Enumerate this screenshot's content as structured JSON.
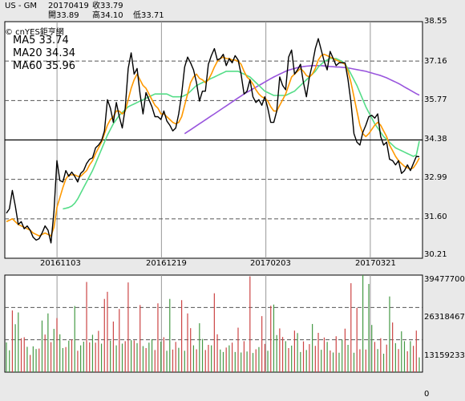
{
  "header": {
    "symbol": "US - GM",
    "date": "20170419",
    "close": "收33.79",
    "open": "開33.89",
    "high": "高34.10",
    "low": "低33.71",
    "credit": "© cnYES鉅亨網"
  },
  "legend": {
    "ma5": "MA5 33.74",
    "ma20": "MA20 34.34",
    "ma60": "MA60 35.96"
  },
  "colors": {
    "price": "#000000",
    "ma5": "#ff9900",
    "ma20": "#55dd88",
    "ma60": "#9955dd",
    "vol_up": "#cc4444",
    "vol_down": "#449944",
    "background": "#e9e9e9",
    "panel": "#ffffff"
  },
  "chart_data": [
    {
      "type": "line",
      "title": "US - GM",
      "y_tick_labels": [
        "38.55",
        "37.16",
        "35.77",
        "34.38",
        "32.99",
        "31.60",
        "30.21"
      ],
      "ylim": [
        30.21,
        38.55
      ],
      "x_tick_labels": [
        "20161103",
        "20161219",
        "20170203",
        "20170321"
      ],
      "grid": true,
      "reference_level": 34.38,
      "x_count": 140,
      "series": [
        {
          "name": "收",
          "values": [
            31.8,
            31.95,
            32.6,
            32.05,
            31.4,
            31.5,
            31.25,
            31.35,
            31.2,
            30.95,
            30.85,
            30.9,
            31.1,
            31.35,
            31.2,
            30.75,
            31.85,
            33.65,
            32.95,
            32.9,
            33.3,
            33.1,
            33.25,
            33.1,
            32.9,
            33.2,
            33.3,
            33.55,
            33.7,
            33.75,
            34.1,
            34.2,
            34.35,
            34.7,
            35.8,
            35.5,
            35.0,
            35.7,
            35.2,
            34.8,
            35.5,
            36.9,
            37.45,
            36.7,
            36.9,
            36.0,
            35.3,
            36.05,
            35.8,
            35.55,
            35.2,
            35.2,
            35.1,
            35.4,
            35.05,
            34.9,
            34.7,
            34.8,
            35.3,
            36.0,
            36.95,
            37.3,
            37.1,
            36.85,
            36.4,
            35.75,
            36.1,
            36.1,
            37.05,
            37.35,
            37.6,
            37.2,
            37.25,
            37.4,
            37.0,
            37.25,
            37.1,
            37.35,
            37.2,
            36.7,
            36.0,
            36.1,
            36.5,
            35.9,
            35.7,
            35.8,
            35.6,
            35.9,
            35.5,
            35.0,
            35.0,
            35.4,
            36.6,
            36.3,
            36.15,
            37.3,
            37.55,
            36.7,
            36.85,
            37.05,
            36.4,
            35.9,
            36.6,
            37.05,
            37.6,
            37.95,
            37.55,
            37.15,
            36.85,
            37.5,
            37.25,
            37.0,
            37.1,
            37.1,
            37.1,
            36.5,
            35.7,
            34.6,
            34.3,
            34.2,
            34.65,
            34.9,
            35.2,
            35.25,
            35.15,
            35.3,
            34.5,
            34.2,
            34.3,
            33.7,
            33.65,
            33.5,
            33.65,
            33.2,
            33.3,
            33.5,
            33.3,
            33.55,
            33.8,
            33.79
          ]
        },
        {
          "name": "MA5",
          "values": [
            31.5,
            31.55,
            31.6,
            31.5,
            31.4,
            31.35,
            31.3,
            31.25,
            31.2,
            31.1,
            31.05,
            31.0,
            31.05,
            31.1,
            31.05,
            31.0,
            31.3,
            32.0,
            32.35,
            32.7,
            33.0,
            33.15,
            33.15,
            33.15,
            33.1,
            33.1,
            33.2,
            33.3,
            33.5,
            33.65,
            33.9,
            34.1,
            34.3,
            34.6,
            34.9,
            35.1,
            35.2,
            35.4,
            35.4,
            35.3,
            35.4,
            35.8,
            36.2,
            36.5,
            36.7,
            36.5,
            36.3,
            36.2,
            36.0,
            35.8,
            35.6,
            35.5,
            35.3,
            35.3,
            35.2,
            35.1,
            35.0,
            34.95,
            35.0,
            35.2,
            35.6,
            36.0,
            36.4,
            36.6,
            36.7,
            36.55,
            36.5,
            36.4,
            36.5,
            36.7,
            36.95,
            37.15,
            37.25,
            37.3,
            37.25,
            37.25,
            37.2,
            37.2,
            37.15,
            37.05,
            36.8,
            36.6,
            36.5,
            36.35,
            36.15,
            36.0,
            35.9,
            35.85,
            35.75,
            35.55,
            35.4,
            35.4,
            35.6,
            35.8,
            36.0,
            36.3,
            36.6,
            36.7,
            36.8,
            36.9,
            36.8,
            36.65,
            36.6,
            36.7,
            36.9,
            37.2,
            37.35,
            37.4,
            37.35,
            37.3,
            37.25,
            37.2,
            37.15,
            37.1,
            37.05,
            36.8,
            36.4,
            35.9,
            35.4,
            34.9,
            34.6,
            34.5,
            34.6,
            34.75,
            34.9,
            35.0,
            34.9,
            34.7,
            34.5,
            34.2,
            34.0,
            33.8,
            33.65,
            33.55,
            33.45,
            33.4,
            33.35,
            33.4,
            33.55,
            33.74
          ]
        },
        {
          "name": "MA20",
          "values": [
            null,
            null,
            null,
            null,
            null,
            null,
            null,
            null,
            null,
            null,
            null,
            null,
            null,
            null,
            null,
            null,
            null,
            null,
            null,
            31.95,
            31.97,
            32.0,
            32.05,
            32.15,
            32.3,
            32.5,
            32.7,
            32.9,
            33.1,
            33.3,
            33.55,
            33.8,
            34.05,
            34.3,
            34.55,
            34.75,
            34.95,
            35.1,
            35.25,
            35.35,
            35.45,
            35.55,
            35.6,
            35.65,
            35.7,
            35.75,
            35.8,
            35.85,
            35.9,
            35.95,
            36.0,
            36.0,
            36.0,
            36.0,
            36.0,
            35.95,
            35.9,
            35.9,
            35.9,
            35.9,
            35.95,
            36.0,
            36.1,
            36.2,
            36.3,
            36.35,
            36.4,
            36.45,
            36.5,
            36.55,
            36.6,
            36.65,
            36.7,
            36.75,
            36.8,
            36.8,
            36.8,
            36.8,
            36.8,
            36.75,
            36.7,
            36.65,
            36.6,
            36.5,
            36.4,
            36.3,
            36.2,
            36.1,
            36.05,
            36.0,
            35.95,
            35.95,
            35.95,
            35.95,
            35.95,
            36.0,
            36.05,
            36.1,
            36.2,
            36.3,
            36.4,
            36.5,
            36.6,
            36.7,
            36.8,
            36.95,
            37.05,
            37.15,
            37.2,
            37.25,
            37.25,
            37.25,
            37.2,
            37.15,
            37.05,
            36.9,
            36.7,
            36.5,
            36.3,
            36.05,
            35.8,
            35.55,
            35.35,
            35.15,
            34.95,
            34.8,
            34.65,
            34.5,
            34.4,
            34.3,
            34.2,
            34.1,
            34.05,
            34.0,
            33.95,
            33.9,
            33.85,
            33.8,
            33.85,
            34.34
          ]
        },
        {
          "name": "MA60",
          "values": [
            null,
            null,
            null,
            null,
            null,
            null,
            null,
            null,
            null,
            null,
            null,
            null,
            null,
            null,
            null,
            null,
            null,
            null,
            null,
            null,
            null,
            null,
            null,
            null,
            null,
            null,
            null,
            null,
            null,
            null,
            null,
            null,
            null,
            null,
            null,
            null,
            null,
            null,
            null,
            null,
            null,
            null,
            null,
            null,
            null,
            null,
            null,
            null,
            null,
            null,
            null,
            null,
            null,
            null,
            null,
            null,
            null,
            null,
            null,
            null,
            34.6,
            34.67,
            34.74,
            34.81,
            34.88,
            34.95,
            35.02,
            35.09,
            35.16,
            35.23,
            35.3,
            35.37,
            35.44,
            35.51,
            35.58,
            35.65,
            35.72,
            35.79,
            35.86,
            35.93,
            36.0,
            36.06,
            36.12,
            36.18,
            36.24,
            36.3,
            36.36,
            36.42,
            36.48,
            36.54,
            36.6,
            36.65,
            36.7,
            36.75,
            36.8,
            36.84,
            36.87,
            36.9,
            36.93,
            36.95,
            36.97,
            36.98,
            36.99,
            37.0,
            37.0,
            37.0,
            37.0,
            36.99,
            36.98,
            36.97,
            36.96,
            36.95,
            36.95,
            36.94,
            36.93,
            36.92,
            36.9,
            36.88,
            36.86,
            36.84,
            36.82,
            36.8,
            36.77,
            36.74,
            36.71,
            36.68,
            36.65,
            36.61,
            36.57,
            36.52,
            36.47,
            36.42,
            36.37,
            36.31,
            36.25,
            36.19,
            36.13,
            36.07,
            36.01,
            35.96
          ]
        }
      ]
    },
    {
      "type": "bar",
      "title": "",
      "y_tick_labels": [
        "39477700",
        "26318467",
        "13159233",
        "0"
      ],
      "ylim": [
        0,
        39477700
      ],
      "grid": true,
      "series": [
        {
          "name": "",
          "values": [
            12.1,
            8.9,
            25.1,
            19.5,
            24.3,
            13.8,
            14.2,
            10.3,
            7.0,
            10.5,
            9.4,
            9.6,
            21.0,
            15.3,
            23.9,
            12.2,
            17.6,
            22.0,
            15.4,
            9.8,
            10.2,
            12.8,
            13.3,
            26.9,
            8.7,
            10.9,
            12.4,
            36.7,
            12.1,
            15.2,
            12.0,
            16.8,
            11.6,
            29.8,
            32.7,
            12.8,
            20.6,
            10.9,
            25.7,
            11.6,
            12.6,
            36.5,
            13.0,
            12.9,
            11.8,
            27.3,
            10.6,
            9.8,
            12.0,
            13.4,
            9.0,
            28.0,
            12.4,
            14.2,
            8.7,
            29.8,
            9.2,
            12.3,
            9.9,
            29.3,
            8.7,
            23.9,
            17.9,
            10.9,
            9.3,
            19.9,
            13.5,
            9.0,
            11.1,
            10.9,
            32.1,
            15.4,
            9.2,
            8.2,
            10.0,
            10.9,
            12.0,
            8.2,
            18.1,
            8.0,
            12.6,
            8.4,
            39.0,
            7.8,
            9.3,
            10.2,
            22.8,
            11.5,
            8.7,
            27.0,
            27.5,
            15.1,
            17.8,
            14.3,
            12.6,
            9.8,
            10.8,
            16.9,
            15.9,
            8.2,
            12.5,
            9.0,
            11.4,
            19.6,
            10.7,
            16.0,
            9.1,
            14.1,
            12.3,
            8.8,
            8.0,
            14.6,
            7.9,
            13.2,
            17.7,
            11.1,
            36.2,
            7.9,
            26.2,
            9.3,
            39.5,
            9.2,
            35.9,
            19.2,
            12.3,
            9.4,
            13.8,
            7.5,
            11.2,
            30.8,
            20.2,
            11.8,
            9.4,
            16.6,
            12.6,
            8.5,
            12.6,
            10.7,
            16.9,
            6.0
          ],
          "direction": [
            0,
            0,
            1,
            0,
            0,
            1,
            1,
            0,
            1,
            0,
            0,
            1,
            0,
            1,
            0,
            1,
            0,
            1,
            0,
            0,
            1,
            0,
            1,
            0,
            1,
            0,
            0,
            1,
            1,
            0,
            1,
            1,
            0,
            1,
            1,
            0,
            1,
            0,
            1,
            0,
            1,
            1,
            0,
            1,
            0,
            1,
            0,
            1,
            0,
            0,
            1,
            1,
            0,
            1,
            0,
            0,
            1,
            1,
            0,
            1,
            0,
            1,
            1,
            0,
            1,
            0,
            0,
            1,
            1,
            0,
            1,
            1,
            0,
            0,
            1,
            0,
            1,
            0,
            1,
            0,
            1,
            0,
            1,
            0,
            1,
            0,
            1,
            1,
            0,
            1,
            0,
            0,
            1,
            1,
            0,
            1,
            0,
            1,
            0,
            0,
            1,
            0,
            1,
            0,
            1,
            1,
            0,
            1,
            0,
            1,
            0,
            1,
            0,
            0,
            1,
            0,
            1,
            0,
            1,
            1,
            0,
            1,
            0,
            0,
            1,
            0,
            1,
            0,
            1,
            0,
            1,
            0,
            1,
            0,
            0,
            1,
            0,
            1,
            1,
            0
          ]
        }
      ]
    }
  ]
}
